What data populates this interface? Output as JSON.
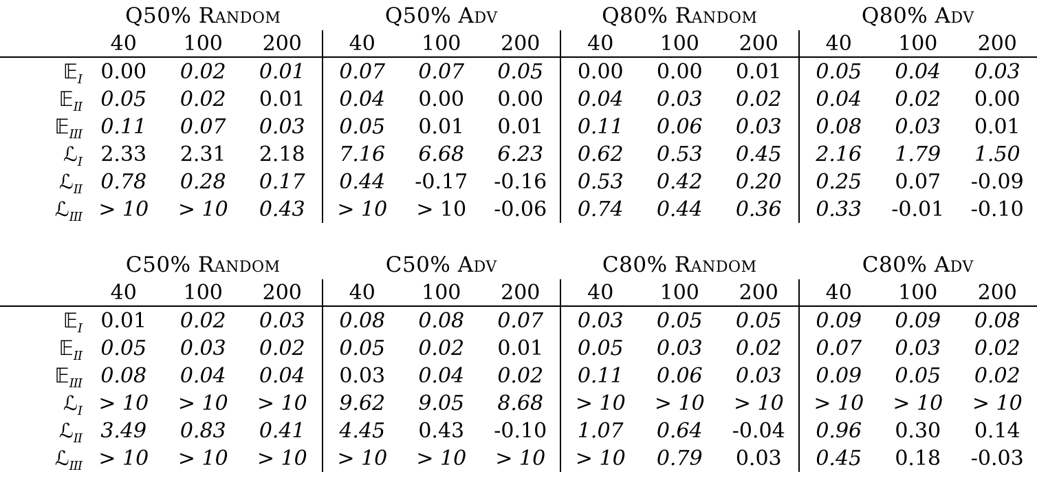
{
  "page": {
    "background": "#ffffff",
    "text_color": "#000000",
    "rule_color": "#000000"
  },
  "tables": [
    {
      "name": "table-q",
      "groups": [
        {
          "title": "Q50% Random"
        },
        {
          "title": "Q50% Adv"
        },
        {
          "title": "Q80% Random"
        },
        {
          "title": "Q80% Adv"
        }
      ],
      "col_headers": [
        "40",
        "100",
        "200"
      ],
      "rows": [
        {
          "label": {
            "base": "𝔼",
            "sub": "I"
          },
          "cells": [
            {
              "text": "0.00",
              "italic": false
            },
            {
              "text": "0.02",
              "italic": true
            },
            {
              "text": "0.01",
              "italic": true
            },
            {
              "text": "0.07",
              "italic": true
            },
            {
              "text": "0.07",
              "italic": true
            },
            {
              "text": "0.05",
              "italic": true
            },
            {
              "text": "0.00",
              "italic": false
            },
            {
              "text": "0.00",
              "italic": false
            },
            {
              "text": "0.01",
              "italic": false
            },
            {
              "text": "0.05",
              "italic": true
            },
            {
              "text": "0.04",
              "italic": true
            },
            {
              "text": "0.03",
              "italic": true
            }
          ]
        },
        {
          "label": {
            "base": "𝔼",
            "sub": "II"
          },
          "cells": [
            {
              "text": "0.05",
              "italic": true
            },
            {
              "text": "0.02",
              "italic": true
            },
            {
              "text": "0.01",
              "italic": false
            },
            {
              "text": "0.04",
              "italic": true
            },
            {
              "text": "0.00",
              "italic": false
            },
            {
              "text": "0.00",
              "italic": false
            },
            {
              "text": "0.04",
              "italic": true
            },
            {
              "text": "0.03",
              "italic": true
            },
            {
              "text": "0.02",
              "italic": true
            },
            {
              "text": "0.04",
              "italic": true
            },
            {
              "text": "0.02",
              "italic": true
            },
            {
              "text": "0.00",
              "italic": false
            }
          ]
        },
        {
          "label": {
            "base": "𝔼",
            "sub": "III"
          },
          "cells": [
            {
              "text": "0.11",
              "italic": true
            },
            {
              "text": "0.07",
              "italic": true
            },
            {
              "text": "0.03",
              "italic": true
            },
            {
              "text": "0.05",
              "italic": true
            },
            {
              "text": "0.01",
              "italic": false
            },
            {
              "text": "0.01",
              "italic": false
            },
            {
              "text": "0.11",
              "italic": true
            },
            {
              "text": "0.06",
              "italic": true
            },
            {
              "text": "0.03",
              "italic": true
            },
            {
              "text": "0.08",
              "italic": true
            },
            {
              "text": "0.03",
              "italic": true
            },
            {
              "text": "0.01",
              "italic": false
            }
          ]
        },
        {
          "label": {
            "base": "ℒ",
            "sub": "I"
          },
          "cells": [
            {
              "text": "2.33",
              "italic": false
            },
            {
              "text": "2.31",
              "italic": false
            },
            {
              "text": "2.18",
              "italic": false
            },
            {
              "text": "7.16",
              "italic": true
            },
            {
              "text": "6.68",
              "italic": true
            },
            {
              "text": "6.23",
              "italic": true
            },
            {
              "text": "0.62",
              "italic": true
            },
            {
              "text": "0.53",
              "italic": true
            },
            {
              "text": "0.45",
              "italic": true
            },
            {
              "text": "2.16",
              "italic": true
            },
            {
              "text": "1.79",
              "italic": true
            },
            {
              "text": "1.50",
              "italic": true
            }
          ]
        },
        {
          "label": {
            "base": "ℒ",
            "sub": "II"
          },
          "cells": [
            {
              "text": "0.78",
              "italic": true
            },
            {
              "text": "0.28",
              "italic": true
            },
            {
              "text": "0.17",
              "italic": true
            },
            {
              "text": "0.44",
              "italic": true
            },
            {
              "text": "-0.17",
              "italic": false
            },
            {
              "text": "-0.16",
              "italic": false
            },
            {
              "text": "0.53",
              "italic": true
            },
            {
              "text": "0.42",
              "italic": true
            },
            {
              "text": "0.20",
              "italic": true
            },
            {
              "text": "0.25",
              "italic": true
            },
            {
              "text": "0.07",
              "italic": false
            },
            {
              "text": "-0.09",
              "italic": false
            }
          ]
        },
        {
          "label": {
            "base": "ℒ",
            "sub": "III"
          },
          "cells": [
            {
              "text": "> 10",
              "italic": true
            },
            {
              "text": "> 10",
              "italic": true
            },
            {
              "text": "0.43",
              "italic": true
            },
            {
              "text": "> 10",
              "italic": true
            },
            {
              "text": "> 10",
              "italic": false
            },
            {
              "text": "-0.06",
              "italic": false
            },
            {
              "text": "0.74",
              "italic": true
            },
            {
              "text": "0.44",
              "italic": true
            },
            {
              "text": "0.36",
              "italic": true
            },
            {
              "text": "0.33",
              "italic": true
            },
            {
              "text": "-0.01",
              "italic": false
            },
            {
              "text": "-0.10",
              "italic": false
            }
          ]
        }
      ]
    },
    {
      "name": "table-c",
      "groups": [
        {
          "title": "C50% Random"
        },
        {
          "title": "C50% Adv"
        },
        {
          "title": "C80% Random"
        },
        {
          "title": "C80% Adv"
        }
      ],
      "col_headers": [
        "40",
        "100",
        "200"
      ],
      "rows": [
        {
          "label": {
            "base": "𝔼",
            "sub": "I"
          },
          "cells": [
            {
              "text": "0.01",
              "italic": false
            },
            {
              "text": "0.02",
              "italic": true
            },
            {
              "text": "0.03",
              "italic": true
            },
            {
              "text": "0.08",
              "italic": true
            },
            {
              "text": "0.08",
              "italic": true
            },
            {
              "text": "0.07",
              "italic": true
            },
            {
              "text": "0.03",
              "italic": true
            },
            {
              "text": "0.05",
              "italic": true
            },
            {
              "text": "0.05",
              "italic": true
            },
            {
              "text": "0.09",
              "italic": true
            },
            {
              "text": "0.09",
              "italic": true
            },
            {
              "text": "0.08",
              "italic": true
            }
          ]
        },
        {
          "label": {
            "base": "𝔼",
            "sub": "II"
          },
          "cells": [
            {
              "text": "0.05",
              "italic": true
            },
            {
              "text": "0.03",
              "italic": true
            },
            {
              "text": "0.02",
              "italic": true
            },
            {
              "text": "0.05",
              "italic": true
            },
            {
              "text": "0.02",
              "italic": true
            },
            {
              "text": "0.01",
              "italic": false
            },
            {
              "text": "0.05",
              "italic": true
            },
            {
              "text": "0.03",
              "italic": true
            },
            {
              "text": "0.02",
              "italic": true
            },
            {
              "text": "0.07",
              "italic": true
            },
            {
              "text": "0.03",
              "italic": true
            },
            {
              "text": "0.02",
              "italic": true
            }
          ]
        },
        {
          "label": {
            "base": "𝔼",
            "sub": "III"
          },
          "cells": [
            {
              "text": "0.08",
              "italic": true
            },
            {
              "text": "0.04",
              "italic": true
            },
            {
              "text": "0.04",
              "italic": true
            },
            {
              "text": "0.03",
              "italic": false
            },
            {
              "text": "0.04",
              "italic": true
            },
            {
              "text": "0.02",
              "italic": true
            },
            {
              "text": "0.11",
              "italic": true
            },
            {
              "text": "0.06",
              "italic": true
            },
            {
              "text": "0.03",
              "italic": true
            },
            {
              "text": "0.09",
              "italic": true
            },
            {
              "text": "0.05",
              "italic": true
            },
            {
              "text": "0.02",
              "italic": true
            }
          ]
        },
        {
          "label": {
            "base": "ℒ",
            "sub": "I"
          },
          "cells": [
            {
              "text": "> 10",
              "italic": true
            },
            {
              "text": "> 10",
              "italic": true
            },
            {
              "text": "> 10",
              "italic": true
            },
            {
              "text": "9.62",
              "italic": true
            },
            {
              "text": "9.05",
              "italic": true
            },
            {
              "text": "8.68",
              "italic": true
            },
            {
              "text": "> 10",
              "italic": true
            },
            {
              "text": "> 10",
              "italic": true
            },
            {
              "text": "> 10",
              "italic": true
            },
            {
              "text": "> 10",
              "italic": true
            },
            {
              "text": "> 10",
              "italic": true
            },
            {
              "text": "> 10",
              "italic": true
            }
          ]
        },
        {
          "label": {
            "base": "ℒ",
            "sub": "II"
          },
          "cells": [
            {
              "text": "3.49",
              "italic": true
            },
            {
              "text": "0.83",
              "italic": true
            },
            {
              "text": "0.41",
              "italic": true
            },
            {
              "text": "4.45",
              "italic": true
            },
            {
              "text": "0.43",
              "italic": false
            },
            {
              "text": "-0.10",
              "italic": false
            },
            {
              "text": "1.07",
              "italic": true
            },
            {
              "text": "0.64",
              "italic": true
            },
            {
              "text": "-0.04",
              "italic": false
            },
            {
              "text": "0.96",
              "italic": true
            },
            {
              "text": "0.30",
              "italic": false
            },
            {
              "text": "0.14",
              "italic": false
            }
          ]
        },
        {
          "label": {
            "base": "ℒ",
            "sub": "III"
          },
          "cells": [
            {
              "text": "> 10",
              "italic": true
            },
            {
              "text": "> 10",
              "italic": true
            },
            {
              "text": "> 10",
              "italic": true
            },
            {
              "text": "> 10",
              "italic": true
            },
            {
              "text": "> 10",
              "italic": true
            },
            {
              "text": "> 10",
              "italic": true
            },
            {
              "text": "> 10",
              "italic": true
            },
            {
              "text": "0.79",
              "italic": true
            },
            {
              "text": "0.03",
              "italic": false
            },
            {
              "text": "0.45",
              "italic": true
            },
            {
              "text": "0.18",
              "italic": false
            },
            {
              "text": "-0.03",
              "italic": false
            }
          ]
        }
      ]
    }
  ]
}
